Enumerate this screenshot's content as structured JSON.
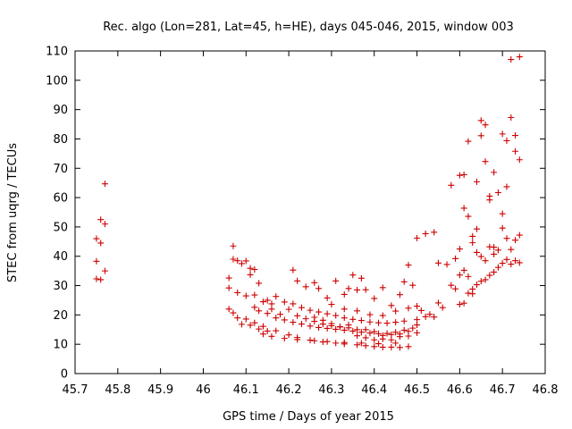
{
  "chart_data": {
    "type": "scatter",
    "title": "Rec. algo (Lon=281, Lat=45, h=HE), days 045-046, 2015, window 003",
    "xlabel": "GPS time / Days of year 2015",
    "ylabel": "STEC from uqrg / TECUs",
    "xlim": [
      45.7,
      46.8
    ],
    "ylim": [
      0,
      110
    ],
    "xticks": [
      "45.7",
      "45.8",
      "45.9",
      "46",
      "46.1",
      "46.2",
      "46.3",
      "46.4",
      "46.5",
      "46.6",
      "46.7",
      "46.8"
    ],
    "yticks": [
      "0",
      "10",
      "20",
      "30",
      "40",
      "50",
      "60",
      "70",
      "80",
      "90",
      "100",
      "110"
    ],
    "grid": false,
    "marker": "+",
    "color": "#cc0000",
    "series": [
      {
        "points": [
          [
            45.75,
            46.0
          ],
          [
            45.76,
            44.5
          ],
          [
            45.76,
            52.5
          ],
          [
            45.77,
            51.0
          ],
          [
            45.77,
            64.7
          ],
          [
            45.75,
            38.3
          ],
          [
            45.77,
            35.0
          ],
          [
            45.75,
            32.3
          ],
          [
            45.76,
            32.0
          ],
          [
            46.06,
            32.6
          ],
          [
            46.07,
            43.5
          ],
          [
            46.07,
            39.0
          ],
          [
            46.08,
            38.5
          ],
          [
            46.09,
            37.5
          ],
          [
            46.1,
            38.4
          ],
          [
            46.11,
            35.9
          ],
          [
            46.12,
            35.5
          ],
          [
            46.13,
            30.8
          ],
          [
            46.11,
            33.7
          ],
          [
            46.06,
            29.2
          ],
          [
            46.08,
            27.6
          ],
          [
            46.1,
            26.5
          ],
          [
            46.12,
            26.8
          ],
          [
            46.15,
            25.0
          ],
          [
            46.16,
            23.8
          ],
          [
            46.17,
            26.3
          ],
          [
            46.06,
            22.0
          ],
          [
            46.07,
            20.7
          ],
          [
            46.08,
            19.0
          ],
          [
            46.09,
            16.8
          ],
          [
            46.1,
            18.6
          ],
          [
            46.11,
            16.5
          ],
          [
            46.12,
            17.3
          ],
          [
            46.13,
            15.2
          ],
          [
            46.14,
            16.1
          ],
          [
            46.15,
            14.5
          ],
          [
            46.17,
            14.6
          ],
          [
            46.2,
            13.2
          ],
          [
            46.22,
            12.3
          ],
          [
            46.25,
            11.4
          ],
          [
            46.28,
            10.8
          ],
          [
            46.31,
            10.4
          ],
          [
            46.33,
            10.1
          ],
          [
            46.36,
            9.8
          ],
          [
            46.38,
            9.5
          ],
          [
            46.4,
            9.2
          ],
          [
            46.42,
            9.0
          ],
          [
            46.44,
            9.0
          ],
          [
            46.46,
            8.9
          ],
          [
            46.48,
            9.2
          ],
          [
            46.14,
            13.5
          ],
          [
            46.16,
            12.7
          ],
          [
            46.19,
            12.0
          ],
          [
            46.22,
            11.6
          ],
          [
            46.26,
            11.2
          ],
          [
            46.29,
            10.9
          ],
          [
            46.33,
            10.6
          ],
          [
            46.37,
            10.4
          ],
          [
            46.41,
            10.2
          ],
          [
            46.45,
            10.4
          ],
          [
            46.13,
            21.4
          ],
          [
            46.15,
            20.5
          ],
          [
            46.17,
            19.0
          ],
          [
            46.19,
            18.3
          ],
          [
            46.21,
            17.5
          ],
          [
            46.23,
            16.9
          ],
          [
            46.25,
            16.2
          ],
          [
            46.27,
            15.7
          ],
          [
            46.29,
            15.4
          ],
          [
            46.31,
            15.1
          ],
          [
            46.33,
            14.8
          ],
          [
            46.35,
            14.5
          ],
          [
            46.37,
            14.1
          ],
          [
            46.39,
            13.8
          ],
          [
            46.41,
            13.6
          ],
          [
            46.43,
            13.7
          ],
          [
            46.45,
            14.1
          ],
          [
            46.47,
            14.8
          ],
          [
            46.49,
            15.5
          ],
          [
            46.19,
            24.4
          ],
          [
            46.21,
            23.8
          ],
          [
            46.23,
            22.5
          ],
          [
            46.25,
            21.6
          ],
          [
            46.27,
            21.0
          ],
          [
            46.29,
            20.4
          ],
          [
            46.31,
            19.8
          ],
          [
            46.33,
            19.0
          ],
          [
            46.35,
            18.5
          ],
          [
            46.37,
            18.1
          ],
          [
            46.39,
            17.6
          ],
          [
            46.41,
            17.3
          ],
          [
            46.43,
            17.2
          ],
          [
            46.45,
            17.5
          ],
          [
            46.47,
            17.9
          ],
          [
            46.5,
            18.4
          ],
          [
            46.21,
            35.3
          ],
          [
            46.22,
            31.6
          ],
          [
            46.24,
            29.6
          ],
          [
            46.26,
            31.0
          ],
          [
            46.27,
            29.0
          ],
          [
            46.29,
            25.8
          ],
          [
            46.31,
            31.6
          ],
          [
            46.33,
            27.0
          ],
          [
            46.34,
            29.0
          ],
          [
            46.36,
            28.5
          ],
          [
            46.37,
            32.5
          ],
          [
            46.35,
            33.6
          ],
          [
            46.38,
            28.6
          ],
          [
            46.4,
            25.6
          ],
          [
            46.42,
            29.3
          ],
          [
            46.44,
            23.2
          ],
          [
            46.46,
            26.9
          ],
          [
            46.47,
            31.3
          ],
          [
            46.48,
            37.0
          ],
          [
            46.49,
            30.1
          ],
          [
            46.5,
            46.2
          ],
          [
            46.26,
            19.2
          ],
          [
            46.28,
            16.9
          ],
          [
            46.3,
            16.3
          ],
          [
            46.32,
            15.9
          ],
          [
            46.34,
            16.6
          ],
          [
            46.36,
            12.9
          ],
          [
            46.38,
            12.2
          ],
          [
            46.4,
            11.5
          ],
          [
            46.42,
            11.8
          ],
          [
            46.44,
            11.5
          ],
          [
            46.46,
            12.6
          ],
          [
            46.48,
            12.8
          ],
          [
            46.5,
            13.9
          ],
          [
            46.3,
            23.6
          ],
          [
            46.33,
            22.0
          ],
          [
            46.36,
            21.4
          ],
          [
            46.39,
            20.1
          ],
          [
            46.42,
            19.8
          ],
          [
            46.45,
            21.3
          ],
          [
            46.48,
            22.3
          ],
          [
            46.5,
            23.0
          ],
          [
            46.51,
            21.5
          ],
          [
            46.52,
            19.4
          ],
          [
            46.53,
            20.2
          ],
          [
            46.54,
            19.3
          ],
          [
            46.55,
            24.1
          ],
          [
            46.56,
            22.5
          ],
          [
            46.52,
            47.7
          ],
          [
            46.54,
            48.2
          ],
          [
            46.55,
            37.7
          ],
          [
            46.57,
            37.2
          ],
          [
            46.58,
            64.2
          ],
          [
            46.59,
            39.2
          ],
          [
            46.6,
            42.5
          ],
          [
            46.6,
            67.6
          ],
          [
            46.61,
            56.4
          ],
          [
            46.61,
            67.8
          ],
          [
            46.62,
            53.6
          ],
          [
            46.62,
            79.2
          ],
          [
            46.63,
            46.8
          ],
          [
            46.63,
            44.6
          ],
          [
            46.64,
            49.3
          ],
          [
            46.64,
            65.4
          ],
          [
            46.65,
            86.3
          ],
          [
            46.65,
            81.1
          ],
          [
            46.66,
            84.8
          ],
          [
            46.66,
            72.3
          ],
          [
            46.67,
            59.2
          ],
          [
            46.67,
            60.5
          ],
          [
            46.68,
            68.6
          ],
          [
            46.68,
            43.1
          ],
          [
            46.69,
            61.7
          ],
          [
            46.7,
            54.5
          ],
          [
            46.7,
            81.7
          ],
          [
            46.71,
            79.4
          ],
          [
            46.71,
            63.7
          ],
          [
            46.72,
            107.1
          ],
          [
            46.72,
            87.3
          ],
          [
            46.73,
            81.2
          ],
          [
            46.73,
            75.8
          ],
          [
            46.74,
            72.9
          ],
          [
            46.74,
            108.0
          ],
          [
            46.58,
            30.1
          ],
          [
            46.59,
            28.9
          ],
          [
            46.6,
            33.6
          ],
          [
            46.61,
            35.2
          ],
          [
            46.62,
            33.1
          ],
          [
            46.63,
            28.8
          ],
          [
            46.64,
            30.3
          ],
          [
            46.65,
            31.5
          ],
          [
            46.66,
            32.0
          ],
          [
            46.67,
            33.5
          ],
          [
            46.68,
            34.6
          ],
          [
            46.69,
            36.2
          ],
          [
            46.7,
            37.6
          ],
          [
            46.71,
            38.9
          ],
          [
            46.72,
            37.3
          ],
          [
            46.73,
            38.5
          ],
          [
            46.74,
            37.8
          ],
          [
            46.6,
            23.6
          ],
          [
            46.61,
            24.0
          ],
          [
            46.62,
            27.4
          ],
          [
            46.63,
            27.2
          ],
          [
            46.64,
            41.3
          ],
          [
            46.65,
            39.9
          ],
          [
            46.66,
            38.5
          ],
          [
            46.67,
            43.2
          ],
          [
            46.68,
            40.7
          ],
          [
            46.69,
            42.1
          ],
          [
            46.7,
            49.6
          ],
          [
            46.71,
            46.1
          ],
          [
            46.72,
            42.3
          ],
          [
            46.73,
            45.5
          ],
          [
            46.74,
            47.2
          ],
          [
            46.12,
            22.6
          ],
          [
            46.14,
            24.5
          ],
          [
            46.16,
            22.0
          ],
          [
            46.18,
            20.2
          ],
          [
            46.2,
            21.9
          ],
          [
            46.22,
            19.7
          ],
          [
            46.24,
            18.7
          ],
          [
            46.26,
            17.8
          ],
          [
            46.28,
            18.2
          ],
          [
            46.3,
            17.0
          ],
          [
            46.32,
            16.0
          ],
          [
            46.34,
            15.6
          ],
          [
            46.36,
            15.0
          ],
          [
            46.38,
            15.0
          ],
          [
            46.4,
            14.3
          ],
          [
            46.42,
            13.0
          ],
          [
            46.44,
            13.3
          ],
          [
            46.46,
            13.5
          ],
          [
            46.48,
            14.4
          ],
          [
            46.5,
            16.6
          ]
        ]
      }
    ]
  }
}
